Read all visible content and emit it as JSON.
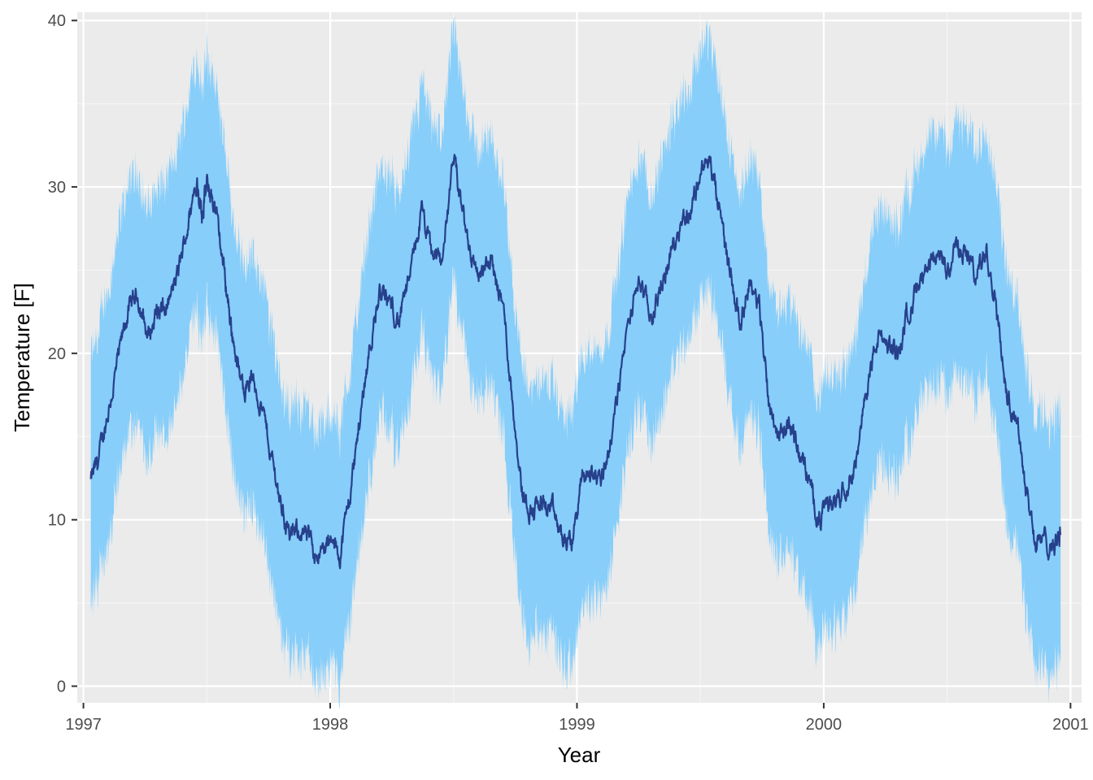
{
  "chart_data": {
    "type": "line",
    "title": "",
    "xlabel": "Year",
    "ylabel": "Temperature [F]",
    "xlim": [
      1996.975,
      2001.045
    ],
    "ylim": [
      -1.0,
      40.5
    ],
    "x_ticks": [
      1997,
      1998,
      1999,
      2000,
      2001
    ],
    "x_tick_labels": [
      "1997",
      "1998",
      "1999",
      "2000",
      "2001"
    ],
    "y_ticks": [
      0,
      10,
      20,
      30,
      40
    ],
    "y_tick_labels": [
      "0",
      "10",
      "20",
      "30",
      "40"
    ],
    "grid": true,
    "legend": "none",
    "colors": {
      "panel_background": "#ebebeb",
      "grid_major": "#ffffff",
      "grid_minor": "#f5f5f5",
      "ribbon_fill": "#87cefa",
      "line": "#27408b"
    },
    "series": [
      {
        "role": "mean",
        "x": [
          1997.03,
          1997.06,
          1997.1,
          1997.14,
          1997.18,
          1997.22,
          1997.26,
          1997.3,
          1997.33,
          1997.38,
          1997.42,
          1997.46,
          1997.48,
          1997.5,
          1997.53,
          1997.57,
          1997.6,
          1997.64,
          1997.68,
          1997.72,
          1997.76,
          1997.8,
          1997.84,
          1997.88,
          1997.92,
          1997.96,
          1998.0,
          1998.04,
          1998.08,
          1998.12,
          1998.16,
          1998.2,
          1998.24,
          1998.28,
          1998.33,
          1998.37,
          1998.41,
          1998.45,
          1998.5,
          1998.53,
          1998.57,
          1998.61,
          1998.65,
          1998.7,
          1998.74,
          1998.78,
          1998.82,
          1998.86,
          1998.9,
          1998.94,
          1998.98,
          1999.02,
          1999.06,
          1999.1,
          1999.14,
          1999.2,
          1999.25,
          1999.3,
          1999.34,
          1999.38,
          1999.42,
          1999.46,
          1999.5,
          1999.54,
          1999.58,
          1999.62,
          1999.66,
          1999.7,
          1999.74,
          1999.78,
          1999.82,
          1999.86,
          1999.9,
          1999.94,
          1999.98,
          2000.02,
          2000.06,
          2000.1,
          2000.14,
          2000.18,
          2000.22,
          2000.26,
          2000.3,
          2000.34,
          2000.38,
          2000.42,
          2000.46,
          2000.5,
          2000.54,
          2000.58,
          2000.62,
          2000.66,
          2000.7,
          2000.74,
          2000.78,
          2000.82,
          2000.86,
          2000.9,
          2000.94,
          2000.96
        ],
        "y": [
          12.3,
          13.5,
          16.5,
          19.5,
          22.5,
          23.5,
          21.0,
          22.5,
          22.5,
          24.5,
          27.5,
          30.5,
          28.5,
          30.0,
          29.0,
          25.0,
          21.5,
          18.0,
          18.5,
          17.0,
          14.0,
          11.0,
          8.8,
          9.5,
          8.5,
          8.0,
          8.5,
          8.0,
          11.5,
          16.0,
          20.5,
          23.5,
          23.0,
          22.0,
          25.0,
          28.5,
          26.0,
          25.5,
          31.5,
          29.0,
          26.0,
          24.5,
          25.5,
          23.0,
          17.0,
          11.5,
          10.5,
          11.0,
          10.5,
          8.8,
          8.6,
          12.5,
          12.8,
          12.5,
          15.0,
          21.0,
          24.5,
          22.0,
          24.0,
          26.0,
          28.0,
          28.5,
          31.0,
          31.5,
          28.0,
          25.0,
          22.0,
          24.5,
          22.5,
          17.0,
          15.0,
          16.0,
          14.0,
          12.5,
          10.0,
          11.0,
          11.5,
          12.5,
          14.0,
          18.5,
          21.0,
          20.5,
          20.0,
          22.5,
          24.0,
          24.5,
          26.0,
          25.0,
          26.5,
          26.0,
          24.5,
          26.5,
          23.0,
          17.5,
          16.5,
          12.0,
          8.5,
          8.8,
          8.5,
          9.5
        ],
        "spread": [
          7.0,
          7.0,
          7.0,
          7.0,
          7.0,
          7.0,
          7.0,
          7.0,
          7.0,
          7.0,
          7.0,
          7.0,
          7.0,
          7.0,
          7.0,
          7.0,
          7.0,
          7.0,
          7.0,
          7.0,
          7.0,
          7.0,
          7.0,
          7.0,
          7.0,
          7.0,
          7.0,
          7.0,
          7.0,
          7.0,
          7.0,
          7.0,
          7.0,
          7.0,
          7.0,
          7.0,
          7.0,
          7.0,
          7.0,
          7.0,
          7.0,
          7.0,
          7.0,
          7.0,
          7.0,
          7.0,
          7.0,
          7.0,
          7.0,
          7.0,
          7.0,
          7.0,
          7.0,
          7.0,
          7.0,
          7.0,
          7.0,
          7.0,
          7.0,
          7.0,
          7.0,
          7.0,
          7.0,
          7.0,
          7.0,
          7.0,
          7.0,
          7.0,
          7.0,
          7.0,
          7.0,
          7.0,
          7.0,
          7.0,
          7.0,
          7.0,
          7.0,
          7.0,
          7.0,
          7.0,
          7.0,
          7.0,
          7.0,
          7.0,
          7.0,
          7.0,
          7.0,
          7.0,
          7.0,
          7.0,
          7.0,
          7.0,
          7.0,
          7.0,
          7.0,
          7.0,
          7.0,
          7.0,
          7.0,
          7.0
        ]
      }
    ]
  }
}
